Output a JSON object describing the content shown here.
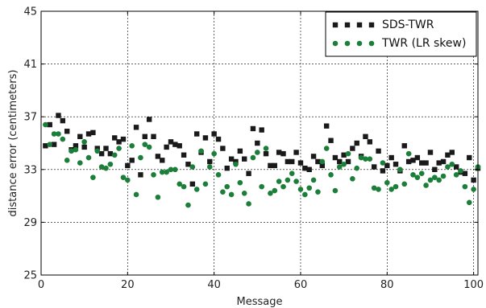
{
  "chart_data": {
    "type": "scatter",
    "title": "",
    "xlabel": "Message",
    "ylabel": "distance error (centimeters)",
    "xlim": [
      0,
      101
    ],
    "ylim": [
      25,
      45
    ],
    "xticks": [
      0,
      20,
      40,
      60,
      80,
      100
    ],
    "yticks": [
      25,
      29,
      33,
      37,
      41,
      45
    ],
    "xtick_labels": [
      "0",
      "20",
      "40",
      "60",
      "80",
      "100"
    ],
    "ytick_labels": [
      "25",
      "29",
      "33",
      "37",
      "41",
      "45"
    ],
    "grid": true,
    "legend_position": "top-right",
    "series": [
      {
        "name": "SDS-TWR",
        "marker": "square",
        "color": "#1a1a1a",
        "x": [
          1,
          2,
          3,
          4,
          5,
          6,
          7,
          8,
          9,
          10,
          11,
          12,
          13,
          14,
          15,
          16,
          17,
          18,
          19,
          20,
          21,
          22,
          23,
          24,
          25,
          26,
          27,
          28,
          29,
          30,
          31,
          32,
          33,
          34,
          35,
          36,
          37,
          38,
          39,
          40,
          41,
          42,
          43,
          44,
          45,
          46,
          47,
          48,
          49,
          50,
          51,
          52,
          53,
          54,
          55,
          56,
          57,
          58,
          59,
          60,
          61,
          62,
          63,
          64,
          65,
          66,
          67,
          68,
          69,
          70,
          71,
          72,
          73,
          74,
          75,
          76,
          77,
          78,
          79,
          80,
          81,
          82,
          83,
          84,
          85,
          86,
          87,
          88,
          89,
          90,
          91,
          92,
          93,
          94,
          95,
          96,
          97,
          98,
          99,
          100,
          101
        ],
        "y": [
          34.8,
          36.4,
          34.9,
          37.1,
          36.7,
          35.9,
          34.5,
          34.8,
          35.5,
          34.7,
          35.7,
          35.8,
          34.6,
          34.2,
          34.6,
          34.2,
          35.4,
          35.1,
          35.3,
          33.3,
          33.7,
          36.2,
          32.6,
          35.5,
          36.8,
          35.5,
          34.0,
          33.7,
          34.7,
          35.1,
          34.9,
          34.8,
          34.1,
          33.4,
          31.9,
          35.7,
          34.3,
          35.4,
          33.6,
          35.7,
          35.3,
          34.6,
          33.1,
          33.8,
          33.6,
          34.4,
          33.8,
          32.7,
          36.1,
          35.0,
          36.0,
          34.2,
          33.3,
          33.3,
          34.3,
          34.2,
          33.6,
          33.6,
          34.3,
          33.5,
          33.1,
          33.0,
          34.0,
          33.6,
          33.3,
          36.3,
          35.2,
          33.9,
          33.6,
          34.1,
          33.6,
          34.6,
          35.0,
          34.0,
          35.5,
          35.1,
          33.2,
          34.4,
          32.9,
          33.3,
          33.9,
          33.4,
          32.9,
          34.8,
          33.6,
          33.7,
          33.9,
          33.5,
          33.5,
          34.3,
          33.0,
          33.5,
          33.6,
          34.1,
          34.3,
          33.2,
          32.8,
          32.7,
          33.9,
          32.2,
          33.1
        ]
      },
      {
        "name": "TWR (LR skew)",
        "marker": "circle",
        "color": "#1b7f3a",
        "x": [
          1,
          2,
          3,
          4,
          5,
          6,
          7,
          8,
          9,
          10,
          11,
          12,
          13,
          14,
          15,
          16,
          17,
          18,
          19,
          20,
          21,
          22,
          23,
          24,
          25,
          26,
          27,
          28,
          29,
          30,
          31,
          32,
          33,
          34,
          35,
          36,
          37,
          38,
          39,
          40,
          41,
          42,
          43,
          44,
          45,
          46,
          47,
          48,
          49,
          50,
          51,
          52,
          53,
          54,
          55,
          56,
          57,
          58,
          59,
          60,
          61,
          62,
          63,
          64,
          65,
          66,
          67,
          68,
          69,
          70,
          71,
          72,
          73,
          74,
          75,
          76,
          77,
          78,
          79,
          80,
          81,
          82,
          83,
          84,
          85,
          86,
          87,
          88,
          89,
          90,
          91,
          92,
          93,
          94,
          95,
          96,
          97,
          98,
          99,
          100,
          101
        ],
        "y": [
          36.4,
          34.9,
          35.7,
          35.7,
          35.3,
          33.7,
          34.4,
          34.5,
          33.5,
          35.1,
          33.9,
          32.4,
          34.4,
          33.2,
          33.1,
          33.4,
          34.1,
          34.6,
          32.4,
          32.2,
          34.8,
          31.1,
          33.9,
          34.9,
          34.7,
          32.6,
          30.9,
          32.8,
          32.8,
          33.0,
          33.0,
          31.9,
          31.7,
          30.3,
          33.2,
          31.5,
          34.4,
          31.9,
          33.2,
          34.2,
          32.6,
          31.3,
          31.7,
          31.1,
          33.4,
          32.0,
          31.2,
          30.4,
          33.9,
          34.3,
          31.7,
          34.6,
          31.2,
          31.4,
          32.1,
          31.7,
          32.2,
          32.7,
          32.1,
          31.5,
          31.1,
          31.6,
          32.2,
          31.3,
          33.6,
          34.6,
          32.6,
          31.4,
          33.2,
          33.4,
          34.2,
          32.3,
          33.1,
          33.9,
          33.8,
          33.8,
          31.6,
          31.5,
          33.5,
          32.0,
          31.5,
          31.7,
          33.0,
          31.9,
          34.2,
          32.6,
          32.4,
          32.7,
          31.8,
          32.2,
          32.4,
          32.2,
          32.5,
          33.2,
          33.4,
          32.6,
          32.9,
          31.7,
          30.5,
          31.5,
          33.2
        ]
      }
    ]
  }
}
